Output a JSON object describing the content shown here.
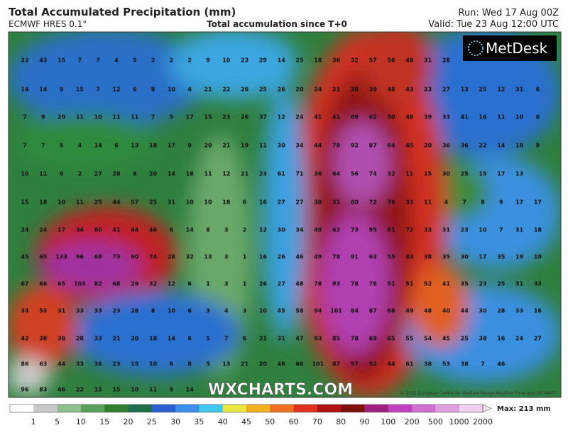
{
  "header": {
    "title": "Total Accumulated Precipitation (mm)",
    "model": "ECMWF HRES 0.1°",
    "subtitle": "Total accumulation since T+0",
    "run": "Run: Wed 17 Aug 00Z",
    "valid": "Valid: Tue 23 Aug 12:00 UTC"
  },
  "logo": "MetDesk",
  "watermark": "WXCHARTS.COM",
  "copyright": "© 2022 European Centre for Medium-Range Weather Forecasts (ECMWF)",
  "grid_values": [
    [
      22,
      43,
      15,
      7,
      7,
      4,
      5,
      2,
      2,
      2,
      9,
      10,
      23,
      29,
      14,
      25,
      18,
      36,
      32,
      57,
      56,
      48,
      31,
      28
    ],
    [
      14,
      14,
      9,
      15,
      7,
      12,
      6,
      8,
      10,
      4,
      21,
      22,
      26,
      25,
      26,
      20,
      24,
      21,
      38,
      39,
      48,
      43,
      23,
      27,
      13,
      25,
      12,
      31,
      6
    ],
    [
      7,
      9,
      20,
      11,
      10,
      11,
      11,
      7,
      5,
      17,
      15,
      23,
      26,
      37,
      12,
      24,
      41,
      41,
      69,
      62,
      50,
      48,
      39,
      33,
      41,
      16,
      11,
      10,
      6
    ],
    [
      7,
      7,
      5,
      4,
      14,
      6,
      13,
      18,
      17,
      9,
      20,
      21,
      19,
      11,
      30,
      34,
      44,
      79,
      92,
      87,
      64,
      45,
      20,
      36,
      36,
      22,
      14,
      18,
      9
    ],
    [
      10,
      11,
      9,
      2,
      27,
      28,
      8,
      20,
      14,
      18,
      11,
      12,
      21,
      23,
      61,
      71,
      36,
      64,
      56,
      74,
      32,
      11,
      15,
      30,
      25,
      15,
      17,
      13
    ],
    [
      15,
      18,
      10,
      11,
      25,
      44,
      57,
      25,
      31,
      10,
      10,
      18,
      6,
      16,
      27,
      27,
      38,
      31,
      60,
      72,
      76,
      33,
      11,
      4,
      7,
      8,
      9,
      17,
      17
    ],
    [
      24,
      24,
      17,
      34,
      60,
      41,
      44,
      46,
      6,
      14,
      8,
      3,
      2,
      12,
      30,
      34,
      49,
      62,
      73,
      95,
      61,
      72,
      33,
      31,
      23,
      10,
      7,
      31,
      18
    ],
    [
      45,
      65,
      133,
      96,
      68,
      73,
      90,
      74,
      28,
      32,
      13,
      3,
      1,
      16,
      26,
      46,
      49,
      78,
      91,
      63,
      55,
      43,
      38,
      35,
      30,
      17,
      35,
      19,
      19
    ],
    [
      67,
      66,
      65,
      103,
      82,
      68,
      29,
      32,
      12,
      6,
      1,
      3,
      1,
      26,
      27,
      48,
      78,
      93,
      78,
      78,
      51,
      51,
      52,
      41,
      35,
      23,
      25,
      31,
      33
    ],
    [
      34,
      53,
      31,
      33,
      33,
      23,
      28,
      8,
      10,
      6,
      3,
      4,
      3,
      10,
      45,
      58,
      94,
      101,
      84,
      87,
      68,
      49,
      48,
      40,
      44,
      30,
      28,
      33,
      16
    ],
    [
      42,
      38,
      38,
      28,
      33,
      21,
      20,
      18,
      14,
      6,
      5,
      7,
      6,
      21,
      31,
      47,
      93,
      85,
      78,
      69,
      65,
      55,
      54,
      45,
      25,
      38,
      16,
      24,
      27
    ],
    [
      86,
      63,
      44,
      33,
      36,
      23,
      15,
      10,
      6,
      8,
      5,
      13,
      21,
      20,
      46,
      66,
      101,
      87,
      57,
      52,
      44,
      61,
      38,
      53,
      38,
      7,
      46
    ],
    [
      96,
      83,
      46,
      22,
      15,
      15,
      10,
      11,
      9,
      14
    ]
  ],
  "colorbar": {
    "labels": [
      1,
      5,
      10,
      15,
      20,
      25,
      30,
      35,
      40,
      45,
      50,
      60,
      70,
      80,
      90,
      100,
      200,
      500,
      1000,
      2000
    ],
    "colors": [
      "#ffffff",
      "#c8c8c8",
      "#8fbf8f",
      "#5aa05a",
      "#2f7f2f",
      "#1e6e4e",
      "#2a5fd0",
      "#3b8ff0",
      "#40c8f0",
      "#e8e840",
      "#f0b020",
      "#f07020",
      "#e03020",
      "#b01010",
      "#801010",
      "#a02080",
      "#c040c0",
      "#d070d0",
      "#e0a0e0",
      "#f0d0f0"
    ],
    "max": "Max: 213 mm"
  }
}
